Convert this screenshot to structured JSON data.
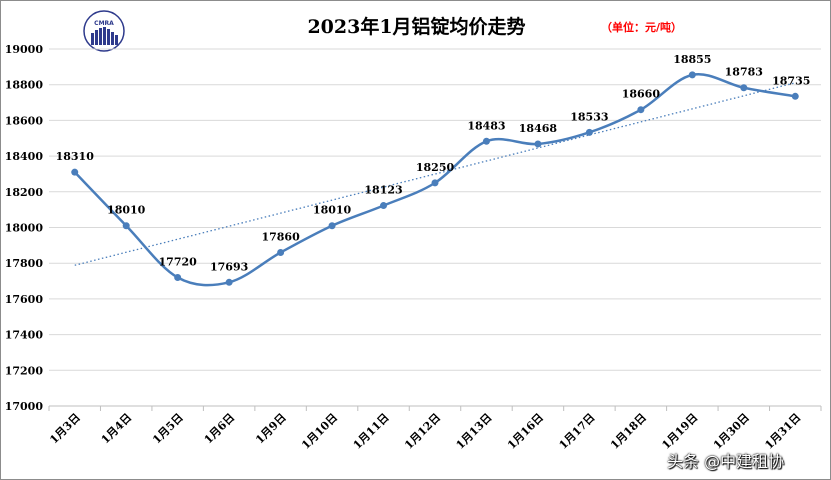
{
  "chart_data": {
    "type": "line",
    "title": "2023年1月铝锭均价走势",
    "unit_note": "（单位：元/吨）",
    "categories": [
      "1月3日",
      "1月4日",
      "1月5日",
      "1月6日",
      "1月9日",
      "1月10日",
      "1月11日",
      "1月12日",
      "1月13日",
      "1月16日",
      "1月17日",
      "1月18日",
      "1月19日",
      "1月30日",
      "1月31日"
    ],
    "series": [
      {
        "values": [
          18310,
          18010,
          17720,
          17693,
          17860,
          18010,
          18123,
          18250,
          18483,
          18468,
          18533,
          18660,
          18855,
          18783,
          18735
        ],
        "color": "#4a7ebb"
      }
    ],
    "trendline": {
      "type": "linear",
      "style": "dotted",
      "color": "#4a7ebb"
    },
    "ylim": [
      17000,
      19000
    ],
    "yticks": [
      17000,
      17200,
      17400,
      17600,
      17800,
      18000,
      18200,
      18400,
      18600,
      18800,
      19000
    ],
    "grid": true,
    "data_labels": true,
    "legend": "none"
  },
  "logo": {
    "text": "CMRA"
  },
  "watermark": "头条 @中建租协"
}
